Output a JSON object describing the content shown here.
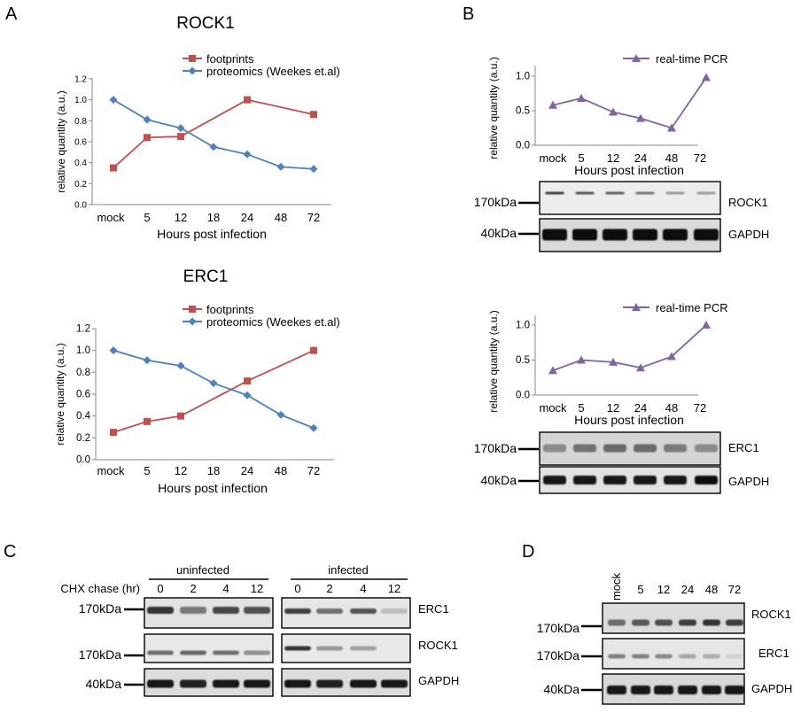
{
  "panels": {
    "A": "A",
    "B": "B",
    "C": "C",
    "D": "D"
  },
  "colors": {
    "footprints": "#c0504d",
    "proteomics": "#4f81bd",
    "pcr": "#8064a2"
  },
  "chart_data": [
    {
      "type": "line",
      "title": "ROCK1",
      "xlabel": "Hours post infection",
      "ylabel": "relative quantity (a.u.)",
      "categories": [
        "mock",
        "5",
        "12",
        "18",
        "24",
        "48",
        "72"
      ],
      "ylim": [
        0,
        1.2
      ],
      "yticks": [
        "0.0",
        "0.2",
        "0.4",
        "0.6",
        "0.8",
        "1.0",
        "1.2"
      ],
      "legend_position": "top-right",
      "series": [
        {
          "name": "footprints",
          "x": [
            "mock",
            "5",
            "12",
            "24",
            "72"
          ],
          "values": [
            0.35,
            0.64,
            0.65,
            1.0,
            0.86
          ]
        },
        {
          "name": "proteomics (Weekes et.al)",
          "x": [
            "mock",
            "5",
            "12",
            "18",
            "24",
            "48",
            "72"
          ],
          "values": [
            1.0,
            0.81,
            0.73,
            0.55,
            0.48,
            0.36,
            0.34
          ]
        }
      ]
    },
    {
      "type": "line",
      "title": "ERC1",
      "xlabel": "Hours post infection",
      "ylabel": "relative quantity (a.u.)",
      "categories": [
        "mock",
        "5",
        "12",
        "18",
        "24",
        "48",
        "72"
      ],
      "ylim": [
        0,
        1.2
      ],
      "yticks": [
        "0.0",
        "0.2",
        "0.4",
        "0.6",
        "0.8",
        "1.0",
        "1.2"
      ],
      "legend_position": "top-right",
      "series": [
        {
          "name": "footprints",
          "x": [
            "mock",
            "5",
            "12",
            "24",
            "72"
          ],
          "values": [
            0.25,
            0.35,
            0.4,
            0.72,
            1.0
          ]
        },
        {
          "name": "proteomics (Weekes et.al)",
          "x": [
            "mock",
            "5",
            "12",
            "18",
            "24",
            "48",
            "72"
          ],
          "values": [
            1.0,
            0.91,
            0.86,
            0.7,
            0.59,
            0.41,
            0.29
          ]
        }
      ]
    },
    {
      "type": "line",
      "xlabel": "Hours post infection",
      "ylabel": "relative quantity (a.u.)",
      "categories": [
        "mock",
        "5",
        "12",
        "24",
        "48",
        "72"
      ],
      "ylim": [
        0,
        1.0
      ],
      "yticks": [
        "0.0",
        "0.5",
        "1.0"
      ],
      "legend_position": "top-right",
      "series": [
        {
          "name": "real-time PCR",
          "values": [
            0.58,
            0.68,
            0.48,
            0.39,
            0.25,
            0.98
          ]
        }
      ]
    },
    {
      "type": "line",
      "xlabel": "Hours post infection",
      "ylabel": "relative quantity (a.u.)",
      "categories": [
        "mock",
        "5",
        "12",
        "24",
        "48",
        "72"
      ],
      "ylim": [
        0,
        1.0
      ],
      "yticks": [
        "0.0",
        "0.5",
        "1.0"
      ],
      "legend_position": "top-right",
      "series": [
        {
          "name": "real-time PCR",
          "values": [
            0.35,
            0.5,
            0.47,
            0.39,
            0.55,
            1.0
          ]
        }
      ]
    }
  ],
  "blots": {
    "B_top": {
      "kda_top": "170kDa",
      "kda_bottom": "40kDa",
      "protein_top": "ROCK1",
      "protein_bottom": "GAPDH"
    },
    "B_bottom": {
      "kda_top": "170kDa",
      "kda_bottom": "40kDa",
      "protein_top": "ERC1",
      "protein_bottom": "GAPDH"
    },
    "C": {
      "uninfected": "uninfected",
      "infected": "infected",
      "chx_label": "CHX chase (hr)",
      "lanes": [
        "0",
        "2",
        "4",
        "12"
      ],
      "kda1": "170kDa",
      "kda2": "170kDa",
      "kda3": "40kDa",
      "proteins": [
        "ERC1",
        "ROCK1",
        "GAPDH"
      ]
    },
    "D": {
      "lanes": [
        "mock",
        "5",
        "12",
        "24",
        "48",
        "72"
      ],
      "kda1": "170kDa",
      "kda2": "170kDa",
      "kda3": "40kDa",
      "proteins": [
        "ROCK1",
        "ERC1",
        "GAPDH"
      ]
    }
  }
}
